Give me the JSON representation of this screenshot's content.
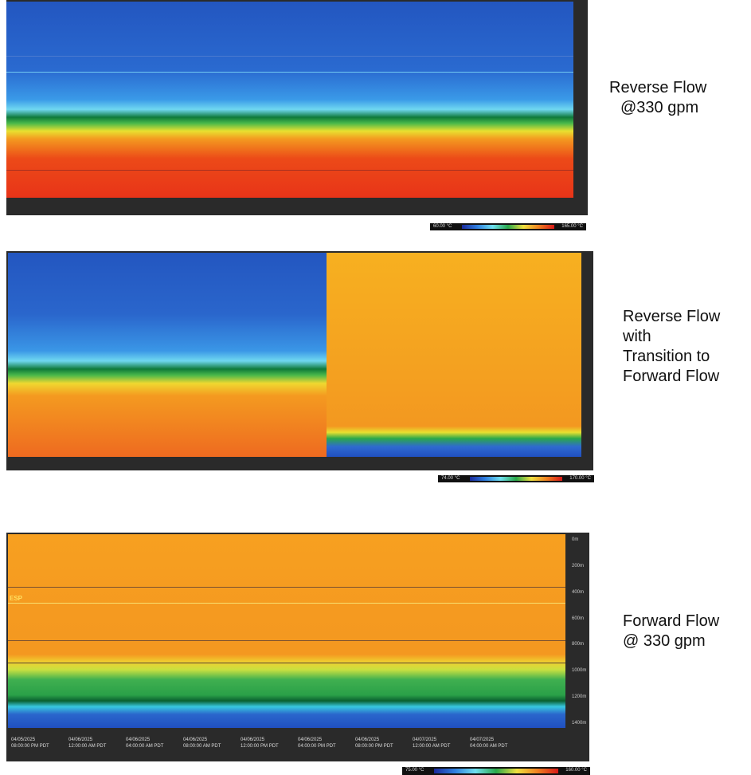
{
  "panels": [
    {
      "caption": [
        "Reverse Flow",
        "@330 gpm"
      ],
      "colorbar": {
        "min_label": "60.00 °C",
        "max_label": "165.00 °C"
      }
    },
    {
      "caption": [
        "Reverse Flow",
        "with",
        "Transition to",
        "Forward Flow"
      ],
      "colorbar": {
        "min_label": "74.00 °C",
        "max_label": "170.00 °C"
      }
    },
    {
      "caption": [
        "Forward Flow",
        "@ 330 gpm"
      ],
      "colorbar": {
        "min_label": "75.00 °C",
        "max_label": "160.00 °C"
      },
      "zone_labels": [
        "ESP"
      ],
      "depth_ticks": [
        "0m",
        "200m",
        "400m",
        "600m",
        "800m",
        "1000m",
        "1200m",
        "1400m"
      ],
      "time_labels": [
        [
          "04/05/2025",
          "08:00:00 PM PDT"
        ],
        [
          "04/06/2025",
          "12:00:00 AM PDT"
        ],
        [
          "04/06/2025",
          "04:00:00 AM PDT"
        ],
        [
          "04/06/2025",
          "08:00:00 AM PDT"
        ],
        [
          "04/06/2025",
          "12:00:00 PM PDT"
        ],
        [
          "04/06/2025",
          "04:00:00 PM PDT"
        ],
        [
          "04/06/2025",
          "08:00:00 PM PDT"
        ],
        [
          "04/07/2025",
          "12:00:00 AM PDT"
        ],
        [
          "04/07/2025",
          "04:00:00 AM PDT"
        ]
      ]
    }
  ]
}
